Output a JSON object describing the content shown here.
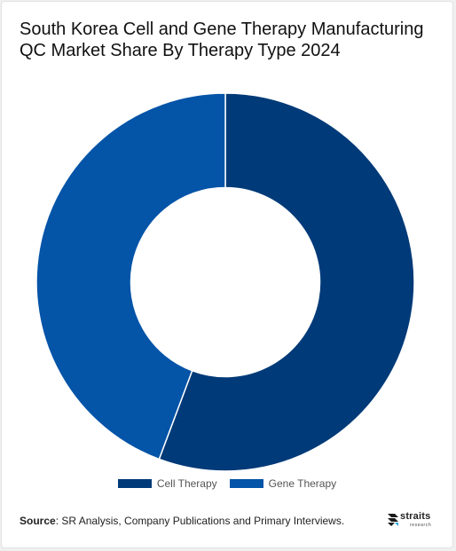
{
  "title": "South Korea Cell and Gene Therapy Manufacturing QC Market Share By Therapy Type 2024",
  "chart_data": {
    "type": "pie",
    "hole": 0.5,
    "categories": [
      "Cell Therapy",
      "Gene Therapy"
    ],
    "values": [
      55.7,
      44.3
    ],
    "colors": [
      "#003a78",
      "#0454a8"
    ],
    "start_angle": "12 o'clock",
    "direction": "clockwise",
    "legend_position": "bottom"
  },
  "source": {
    "label": "Source",
    "text": ": SR Analysis, Company Publications and Primary Interviews."
  },
  "logo": {
    "name": "straits",
    "sub": "research",
    "icon": "straits-logo-icon"
  }
}
